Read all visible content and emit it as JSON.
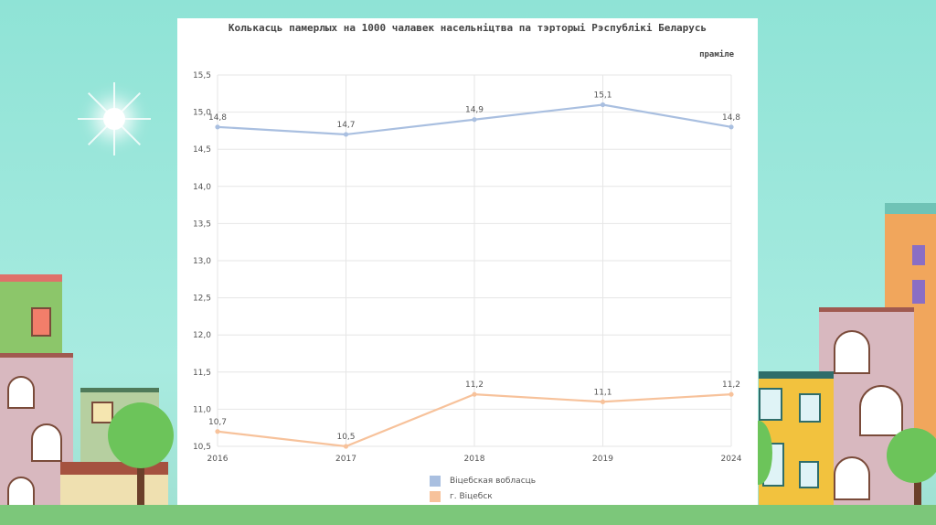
{
  "chart_data": {
    "type": "line",
    "title": "Колькасць памерлых на 1000 чалавек насельніцтва па тэрторыі Рэспублікі Беларусь",
    "subtitle": "праміле",
    "categories": [
      "2016",
      "2017",
      "2018",
      "2019",
      "2024"
    ],
    "ylim": [
      10.5,
      15.5
    ],
    "yticks": [
      "15,5",
      "15,0",
      "14,5",
      "14,0",
      "13,5",
      "13,0",
      "12,5",
      "12,0",
      "11,5",
      "11,0",
      "10,5"
    ],
    "grid": true,
    "legend_position": "bottom",
    "series": [
      {
        "name": "Віцебская вобласць",
        "color": "#a9bfe0",
        "values": [
          14.8,
          14.7,
          14.9,
          15.1,
          14.8
        ],
        "labels": [
          "14,8",
          "14,7",
          "14,9",
          "15,1",
          "14,8"
        ]
      },
      {
        "name": "г. Віцебск",
        "color": "#f7c29b",
        "values": [
          10.7,
          10.5,
          11.2,
          11.1,
          11.2
        ],
        "labels": [
          "10,7",
          "10,5",
          "11,2",
          "11,1",
          "11,2"
        ]
      }
    ]
  }
}
